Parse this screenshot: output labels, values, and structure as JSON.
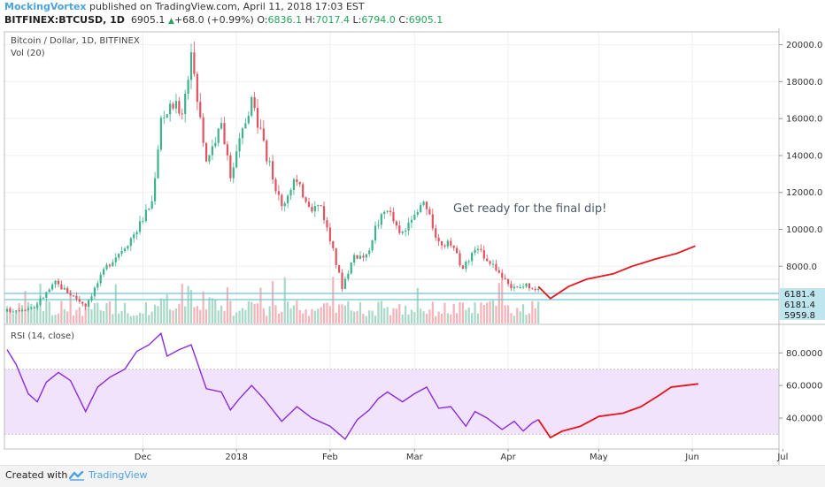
{
  "header": {
    "author": "MockingVortex",
    "published_text": " published on TradingView.com, April 11, 2018 17:03 EST",
    "symbol": "BITFINEX:BTCUSD, 1D",
    "last": "6905.1",
    "arrow": "▲",
    "change": "+68.0 (+0.99%)",
    "open_label": "O:",
    "open": "6836.1",
    "high_label": "H:",
    "high": "7017.4",
    "low_label": "L:",
    "low": "6794.0",
    "close_label": "C:",
    "close": "6905.1"
  },
  "footer": {
    "created_with": "Created with",
    "brand": "TradingView"
  },
  "colors": {
    "up": "#3db38a",
    "down": "#e0535f",
    "vol_up": "#a8d9c7",
    "vol_down": "#f3b3b8",
    "rsi": "#8a2be2",
    "rsi_band": "#f1e3fb",
    "projection": "#e8141d",
    "hline": "#6ec6d8",
    "price_label_bg": "#bfe6ef"
  },
  "chart_data": [
    {
      "type": "candlestick",
      "title": "Bitcoin / Dollar, 1D, BITFINEX",
      "indicator": "Vol (20)",
      "annotation": "Get ready for the final dip!",
      "y_ticks": [
        8000,
        10000,
        12000,
        14000,
        16000,
        18000,
        20000
      ],
      "y_tick_labels": [
        "8000.0",
        "10000.0",
        "12000.0",
        "14000.0",
        "16000.0",
        "18000.0",
        "20000.0"
      ],
      "ylim": [
        4900,
        20700
      ],
      "x_labels": [
        "Dec",
        "2018",
        "Feb",
        "Mar",
        "Apr",
        "May",
        "Jun",
        "Jul"
      ],
      "price_labels": [
        "6181.4",
        "6181.4",
        "5959.8"
      ],
      "horizontal_levels": [
        6181.4,
        5959.8
      ],
      "close_anchors": [
        {
          "date": "2017-10-17",
          "close": 5600
        },
        {
          "date": "2017-10-26",
          "close": 5800
        },
        {
          "date": "2017-11-02",
          "close": 7100
        },
        {
          "date": "2017-11-12",
          "close": 5900
        },
        {
          "date": "2017-11-19",
          "close": 8000
        },
        {
          "date": "2017-11-26",
          "close": 9300
        },
        {
          "date": "2017-11-29",
          "close": 10000
        },
        {
          "date": "2017-12-04",
          "close": 11500
        },
        {
          "date": "2017-12-07",
          "close": 16000
        },
        {
          "date": "2017-12-11",
          "close": 16700
        },
        {
          "date": "2017-12-14",
          "close": 16500
        },
        {
          "date": "2017-12-17",
          "close": 19200
        },
        {
          "date": "2017-12-22",
          "close": 13800
        },
        {
          "date": "2017-12-27",
          "close": 15600
        },
        {
          "date": "2017-12-30",
          "close": 12800
        },
        {
          "date": "2018-01-02",
          "close": 14700
        },
        {
          "date": "2018-01-06",
          "close": 17100
        },
        {
          "date": "2018-01-10",
          "close": 14500
        },
        {
          "date": "2018-01-16",
          "close": 11200
        },
        {
          "date": "2018-01-20",
          "close": 12700
        },
        {
          "date": "2018-01-26",
          "close": 11200
        },
        {
          "date": "2018-01-29",
          "close": 11300
        },
        {
          "date": "2018-02-02",
          "close": 8800
        },
        {
          "date": "2018-02-05",
          "close": 6900
        },
        {
          "date": "2018-02-09",
          "close": 8600
        },
        {
          "date": "2018-02-13",
          "close": 8500
        },
        {
          "date": "2018-02-16",
          "close": 10100
        },
        {
          "date": "2018-02-20",
          "close": 11200
        },
        {
          "date": "2018-02-24",
          "close": 9700
        },
        {
          "date": "2018-02-28",
          "close": 10300
        },
        {
          "date": "2018-03-04",
          "close": 11500
        },
        {
          "date": "2018-03-09",
          "close": 9300
        },
        {
          "date": "2018-03-13",
          "close": 9150
        },
        {
          "date": "2018-03-17",
          "close": 7900
        },
        {
          "date": "2018-03-21",
          "close": 8900
        },
        {
          "date": "2018-03-24",
          "close": 8600
        },
        {
          "date": "2018-03-28",
          "close": 7900
        },
        {
          "date": "2018-04-01",
          "close": 6900
        },
        {
          "date": "2018-04-04",
          "close": 6800
        },
        {
          "date": "2018-04-07",
          "close": 7000
        },
        {
          "date": "2018-04-10",
          "close": 6837
        },
        {
          "date": "2018-04-11",
          "close": 6905
        }
      ],
      "projection": [
        {
          "date": "2018-04-11",
          "price": 6900
        },
        {
          "date": "2018-04-15",
          "price": 6250
        },
        {
          "date": "2018-04-21",
          "price": 6900
        },
        {
          "date": "2018-04-27",
          "price": 7300
        },
        {
          "date": "2018-05-06",
          "price": 7600
        },
        {
          "date": "2018-05-12",
          "price": 8000
        },
        {
          "date": "2018-05-20",
          "price": 8400
        },
        {
          "date": "2018-05-27",
          "price": 8700
        },
        {
          "date": "2018-06-02",
          "price": 9100
        }
      ]
    },
    {
      "type": "line",
      "title": "RSI (14, close)",
      "ylim": [
        21,
        97
      ],
      "y_ticks": [
        40,
        60,
        80
      ],
      "y_tick_labels": [
        "40.0000",
        "60.0000",
        "80.0000"
      ],
      "band": [
        30,
        70
      ],
      "x_labels": [
        "Dec",
        "2018",
        "Feb",
        "Mar",
        "Apr",
        "May",
        "Jun",
        "Jul"
      ],
      "values": [
        {
          "date": "2017-10-17",
          "rsi": 82
        },
        {
          "date": "2017-10-20",
          "rsi": 73
        },
        {
          "date": "2017-10-24",
          "rsi": 55
        },
        {
          "date": "2017-10-27",
          "rsi": 50
        },
        {
          "date": "2017-10-30",
          "rsi": 62
        },
        {
          "date": "2017-11-03",
          "rsi": 68
        },
        {
          "date": "2017-11-07",
          "rsi": 63
        },
        {
          "date": "2017-11-12",
          "rsi": 44
        },
        {
          "date": "2017-11-16",
          "rsi": 59
        },
        {
          "date": "2017-11-20",
          "rsi": 65
        },
        {
          "date": "2017-11-25",
          "rsi": 70
        },
        {
          "date": "2017-11-29",
          "rsi": 81
        },
        {
          "date": "2017-12-03",
          "rsi": 85
        },
        {
          "date": "2017-12-07",
          "rsi": 92
        },
        {
          "date": "2017-12-09",
          "rsi": 78
        },
        {
          "date": "2017-12-13",
          "rsi": 82
        },
        {
          "date": "2017-12-17",
          "rsi": 85
        },
        {
          "date": "2017-12-22",
          "rsi": 58
        },
        {
          "date": "2017-12-27",
          "rsi": 56
        },
        {
          "date": "2017-12-30",
          "rsi": 45
        },
        {
          "date": "2018-01-02",
          "rsi": 52
        },
        {
          "date": "2018-01-06",
          "rsi": 60
        },
        {
          "date": "2018-01-10",
          "rsi": 52
        },
        {
          "date": "2018-01-16",
          "rsi": 38
        },
        {
          "date": "2018-01-21",
          "rsi": 47
        },
        {
          "date": "2018-01-26",
          "rsi": 40
        },
        {
          "date": "2018-02-01",
          "rsi": 35
        },
        {
          "date": "2018-02-06",
          "rsi": 27
        },
        {
          "date": "2018-02-10",
          "rsi": 39
        },
        {
          "date": "2018-02-14",
          "rsi": 45
        },
        {
          "date": "2018-02-17",
          "rsi": 52
        },
        {
          "date": "2018-02-20",
          "rsi": 56
        },
        {
          "date": "2018-02-25",
          "rsi": 50
        },
        {
          "date": "2018-03-01",
          "rsi": 55
        },
        {
          "date": "2018-03-05",
          "rsi": 59
        },
        {
          "date": "2018-03-09",
          "rsi": 46
        },
        {
          "date": "2018-03-13",
          "rsi": 47
        },
        {
          "date": "2018-03-18",
          "rsi": 35
        },
        {
          "date": "2018-03-21",
          "rsi": 44
        },
        {
          "date": "2018-03-25",
          "rsi": 40
        },
        {
          "date": "2018-03-30",
          "rsi": 33
        },
        {
          "date": "2018-04-03",
          "rsi": 38
        },
        {
          "date": "2018-04-06",
          "rsi": 32
        },
        {
          "date": "2018-04-09",
          "rsi": 37
        },
        {
          "date": "2018-04-11",
          "rsi": 39
        }
      ],
      "projection": [
        {
          "date": "2018-04-11",
          "rsi": 39
        },
        {
          "date": "2018-04-15",
          "rsi": 28
        },
        {
          "date": "2018-04-19",
          "rsi": 32
        },
        {
          "date": "2018-04-25",
          "rsi": 35
        },
        {
          "date": "2018-05-01",
          "rsi": 41
        },
        {
          "date": "2018-05-09",
          "rsi": 43
        },
        {
          "date": "2018-05-15",
          "rsi": 47
        },
        {
          "date": "2018-05-21",
          "rsi": 54
        },
        {
          "date": "2018-05-25",
          "rsi": 59
        },
        {
          "date": "2018-06-03",
          "rsi": 61
        }
      ]
    }
  ]
}
